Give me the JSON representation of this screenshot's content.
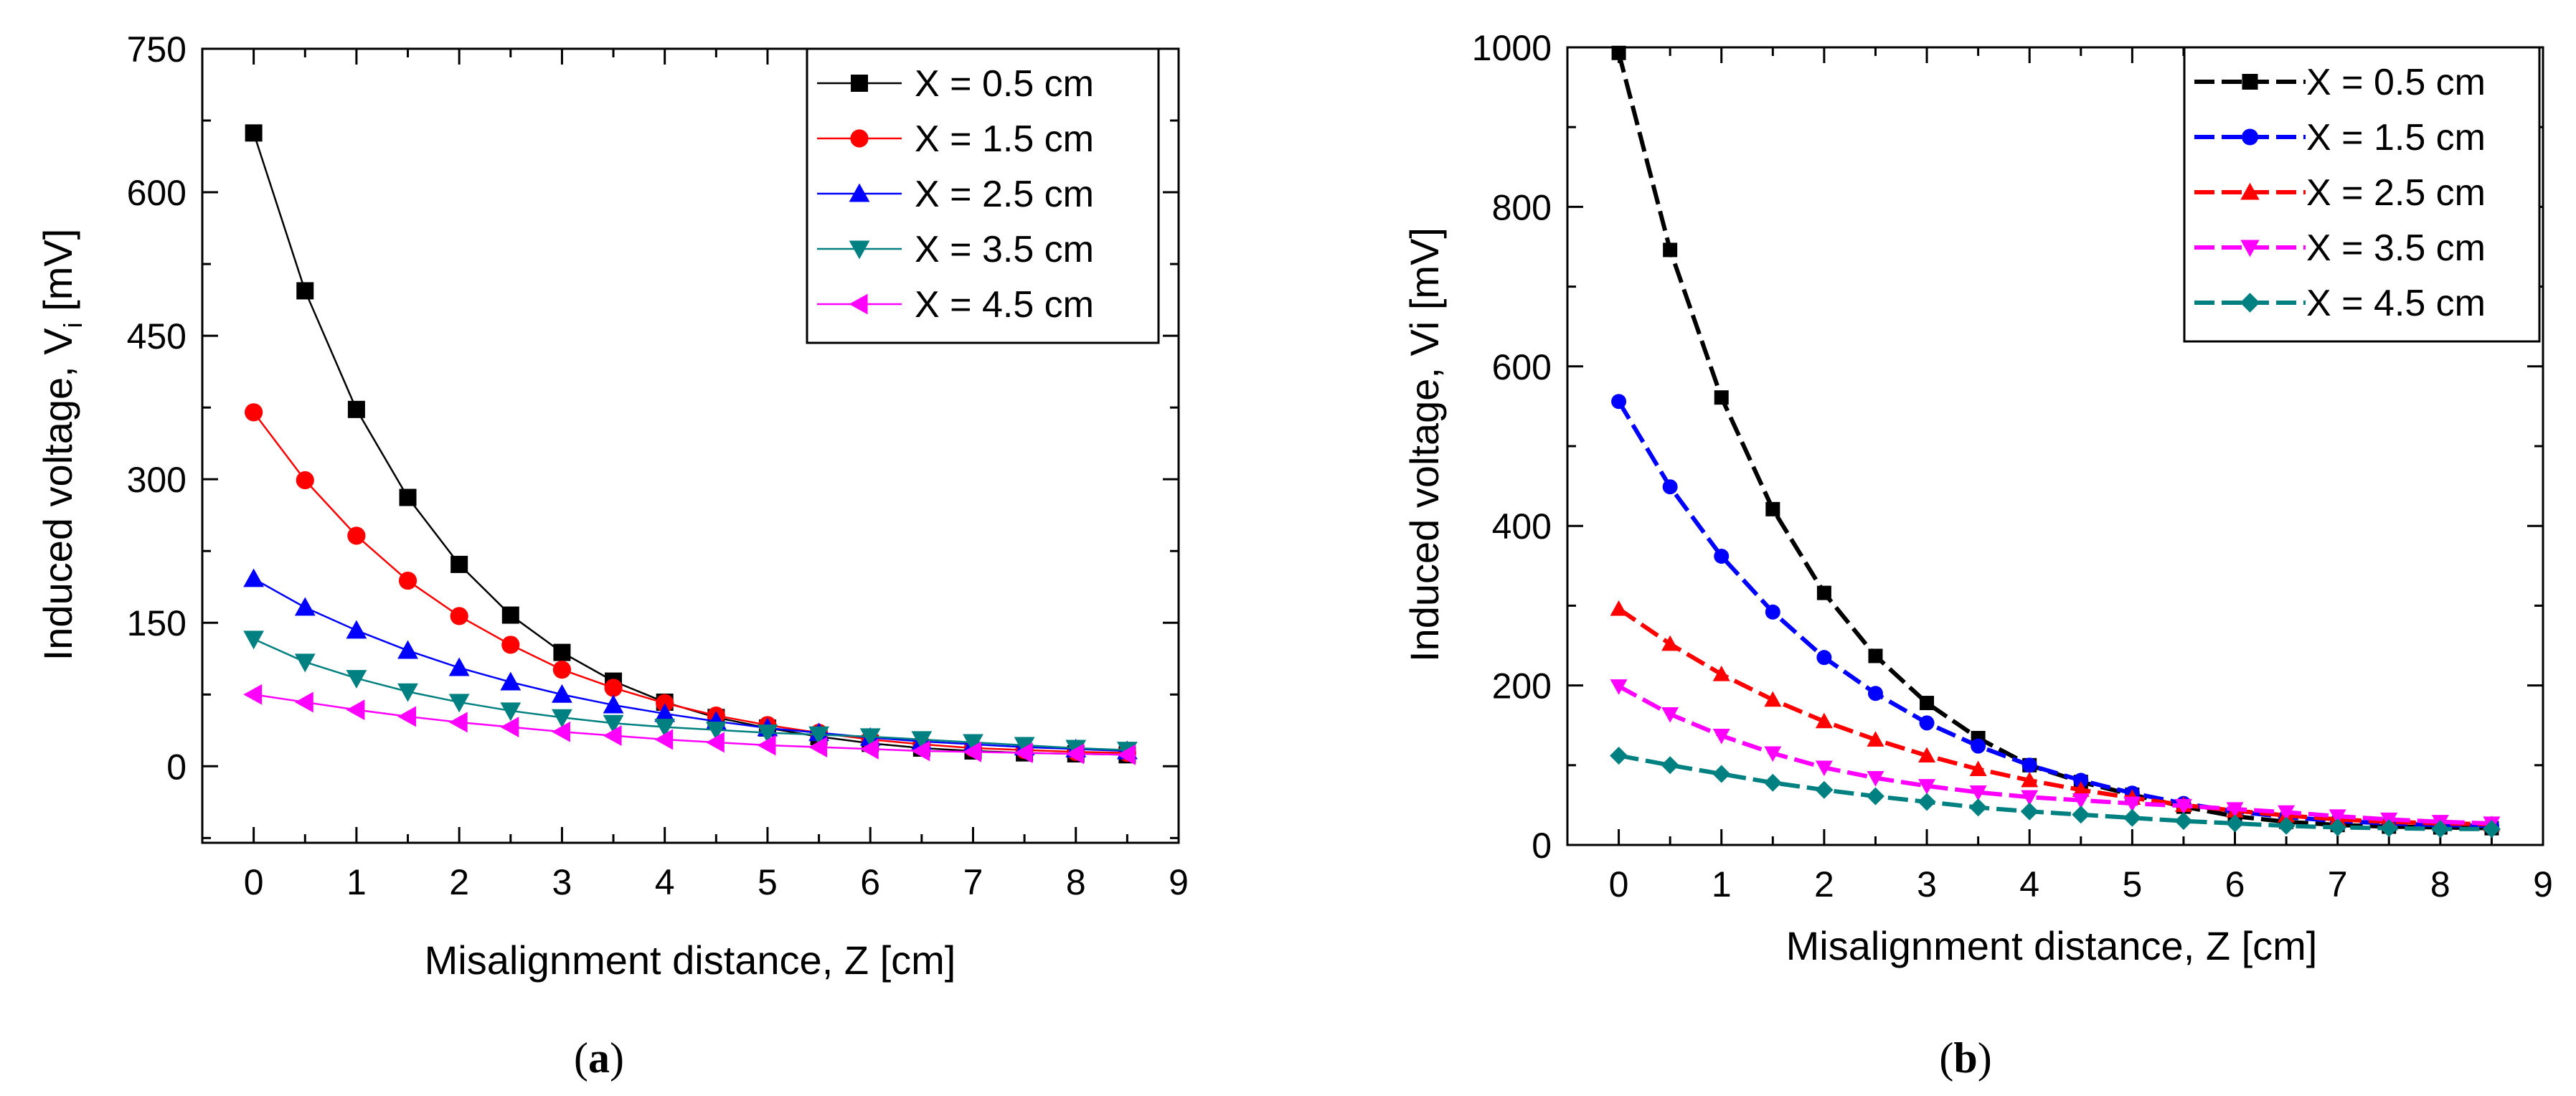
{
  "chart_data": [
    {
      "type": "line",
      "panel_label": "a",
      "xlabel": "Misalignment distance, Z [cm]",
      "ylabel": "Induced voltage, V",
      "ylabel_sub": "i",
      "ylabel_unit": " [mV]",
      "xlim": [
        -0.5,
        9
      ],
      "ylim": [
        -80,
        750
      ],
      "xticks": [
        0,
        1,
        2,
        3,
        4,
        5,
        6,
        7,
        8,
        9
      ],
      "yticks": [
        0,
        150,
        300,
        450,
        600,
        750
      ],
      "grid": false,
      "legend_position": "top-right",
      "x": [
        0,
        0.5,
        1,
        1.5,
        2,
        2.5,
        3,
        3.5,
        4,
        4.5,
        5,
        5.5,
        6,
        6.5,
        7,
        7.5,
        8,
        8.5
      ],
      "series": [
        {
          "name": "X = 0.5 cm",
          "color": "#000000",
          "marker": "square",
          "values": [
            662,
            497,
            373,
            281,
            211,
            158,
            119,
            89,
            67,
            51,
            40,
            31,
            24,
            19,
            16,
            14,
            13,
            12
          ]
        },
        {
          "name": "X = 1.5 cm",
          "color": "#ff0000",
          "marker": "circle",
          "values": [
            370,
            299,
            241,
            194,
            157,
            127,
            101,
            82,
            66,
            53,
            43,
            35,
            28,
            23,
            19,
            17,
            15,
            14
          ]
        },
        {
          "name": "X = 2.5 cm",
          "color": "#0000ff",
          "marker": "triangle-up",
          "values": [
            196,
            166,
            142,
            121,
            103,
            88,
            75,
            64,
            55,
            47,
            40,
            35,
            30,
            26,
            23,
            20,
            18,
            16
          ]
        },
        {
          "name": "X = 3.5 cm",
          "color": "#008080",
          "marker": "triangle-down",
          "values": [
            133,
            109,
            92,
            78,
            67,
            58,
            51,
            45,
            41,
            38,
            35,
            33,
            31,
            28,
            25,
            22,
            19,
            17
          ]
        },
        {
          "name": "X = 4.5 cm",
          "color": "#ff00ff",
          "marker": "triangle-left",
          "values": [
            75,
            67,
            59,
            52,
            46,
            41,
            36,
            32,
            28,
            25,
            22,
            20,
            18,
            16,
            15,
            14,
            13,
            12
          ]
        }
      ]
    },
    {
      "type": "line",
      "panel_label": "b",
      "xlabel": "Misalignment distance, Z [cm]",
      "ylabel": "Induced voltage,  Vi [mV]",
      "xlim": [
        -0.5,
        9
      ],
      "ylim": [
        0,
        1000
      ],
      "xticks": [
        0,
        1,
        2,
        3,
        4,
        5,
        6,
        7,
        8,
        9
      ],
      "yticks": [
        0,
        200,
        400,
        600,
        800,
        1000
      ],
      "grid": false,
      "legend_position": "top-right",
      "x": [
        0,
        0.5,
        1,
        1.5,
        2,
        2.5,
        3,
        3.5,
        4,
        4.5,
        5,
        5.5,
        6,
        6.5,
        7,
        7.5,
        8,
        8.5
      ],
      "series": [
        {
          "name": "X = 0.5 cm",
          "color": "#000000",
          "marker": "square",
          "values": [
            993,
            746,
            561,
            421,
            316,
            237,
            178,
            134,
            100,
            79,
            63,
            48,
            36,
            29,
            25,
            23,
            22,
            21
          ]
        },
        {
          "name": "X = 1.5 cm",
          "color": "#0000ff",
          "marker": "circle",
          "values": [
            556,
            449,
            362,
            292,
            235,
            190,
            153,
            124,
            100,
            81,
            65,
            52,
            42,
            35,
            30,
            27,
            25,
            24
          ]
        },
        {
          "name": "X = 2.5 cm",
          "color": "#ff0000",
          "marker": "triangle-up",
          "values": [
            296,
            252,
            214,
            182,
            155,
            132,
            112,
            95,
            81,
            69,
            59,
            50,
            43,
            37,
            32,
            29,
            27,
            26
          ]
        },
        {
          "name": "X = 3.5 cm",
          "color": "#ff00ff",
          "marker": "triangle-down",
          "values": [
            199,
            164,
            137,
            115,
            97,
            84,
            74,
            66,
            60,
            56,
            52,
            49,
            45,
            41,
            36,
            32,
            29,
            27
          ]
        },
        {
          "name": "X = 4.5 cm",
          "color": "#008080",
          "marker": "diamond",
          "values": [
            112,
            100,
            89,
            78,
            69,
            61,
            54,
            47,
            42,
            38,
            34,
            30,
            27,
            24,
            22,
            21,
            20,
            20
          ]
        }
      ]
    }
  ]
}
